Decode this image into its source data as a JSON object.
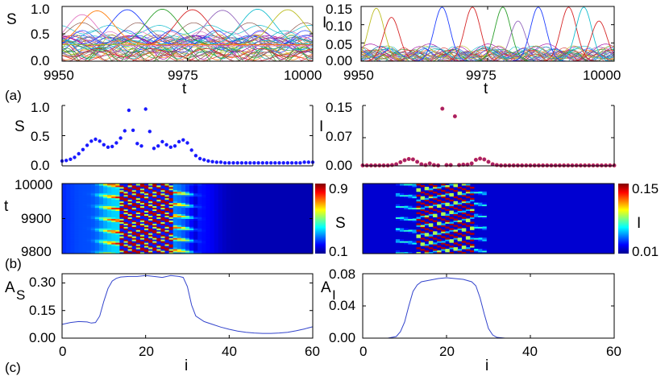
{
  "figure": {
    "panel_labels": [
      "(a)",
      "(b)",
      "(c)"
    ]
  },
  "chart_data": [
    {
      "id": "a-left",
      "type": "line",
      "title": "",
      "xlabel": "t",
      "ylabel": "S",
      "xlim": [
        9950,
        10000
      ],
      "ylim": [
        0,
        1.0
      ],
      "xticks": [
        9950,
        9975,
        10000
      ],
      "xtick_labels": [
        "9950",
        "9975",
        "10000"
      ],
      "yticks": [
        0,
        0.5,
        1.0
      ],
      "ytick_labels": [
        "0.0",
        "0.5",
        "1.0"
      ],
      "grid": false,
      "series_note": "61 oscillator traces S_i(t)",
      "peak_series": [
        {
          "name": "peak-1",
          "color": "#1f3fff",
          "peak_t": 9963,
          "peak": 0.94,
          "width": 5.5,
          "base": 0.3
        },
        {
          "name": "peak-2",
          "color": "#2ca02c",
          "peak_t": 9970,
          "peak": 0.95,
          "width": 5.5,
          "base": 0.3
        },
        {
          "name": "peak-3",
          "color": "#d62728",
          "peak_t": 9976,
          "peak": 0.94,
          "width": 5.5,
          "base": 0.3
        },
        {
          "name": "peak-4",
          "color": "#9467bd",
          "peak_t": 9982,
          "peak": 0.93,
          "width": 5.5,
          "base": 0.3
        },
        {
          "name": "peak-5",
          "color": "#17becf",
          "peak_t": 9989,
          "peak": 0.95,
          "width": 5.5,
          "base": 0.3
        },
        {
          "name": "peak-6",
          "color": "#bcbd22",
          "peak_t": 9995,
          "peak": 0.94,
          "width": 5.5,
          "base": 0.3
        },
        {
          "name": "peak-7",
          "color": "#ff7f0e",
          "peak_t": 9957,
          "peak": 0.92,
          "width": 5.5,
          "base": 0.3
        },
        {
          "name": "peak-8",
          "color": "#e377c2",
          "peak_t": 9954,
          "peak": 0.85,
          "width": 5.0,
          "base": 0.28
        }
      ]
    },
    {
      "id": "a-right",
      "type": "line",
      "title": "",
      "xlabel": "t",
      "ylabel": "I",
      "xlim": [
        9950,
        10000
      ],
      "ylim": [
        0,
        0.15
      ],
      "xticks": [
        9950,
        9975,
        10000
      ],
      "xtick_labels": [
        "9950",
        "9975",
        "10000"
      ],
      "yticks": [
        0,
        0.05,
        0.1,
        0.15
      ],
      "ytick_labels": [
        "0.00",
        "0.05",
        "0.10",
        "0.15"
      ],
      "grid": false,
      "series_note": "61 oscillator traces I_i(t)",
      "peak_series": [
        {
          "name": "peak-1",
          "color": "#bcbd22",
          "peak_t": 9953,
          "peak": 0.145,
          "width": 2.2
        },
        {
          "name": "peak-2",
          "color": "#d62728",
          "peak_t": 9956,
          "peak": 0.12,
          "width": 2.2
        },
        {
          "name": "peak-3",
          "color": "#1f3fff",
          "peak_t": 9966,
          "peak": 0.148,
          "width": 2.2
        },
        {
          "name": "peak-4",
          "color": "#d62728",
          "peak_t": 9972,
          "peak": 0.148,
          "width": 2.2
        },
        {
          "name": "peak-5",
          "color": "#2ca02c",
          "peak_t": 9978,
          "peak": 0.148,
          "width": 2.2
        },
        {
          "name": "peak-6",
          "color": "#9467bd",
          "peak_t": 9981,
          "peak": 0.11,
          "width": 2.2
        },
        {
          "name": "peak-7",
          "color": "#1f3fff",
          "peak_t": 9985,
          "peak": 0.148,
          "width": 2.2
        },
        {
          "name": "peak-8",
          "color": "#d62728",
          "peak_t": 9991,
          "peak": 0.148,
          "width": 2.2
        },
        {
          "name": "peak-9",
          "color": "#17becf",
          "peak_t": 9994,
          "peak": 0.148,
          "width": 2.2
        },
        {
          "name": "peak-10",
          "color": "#d62728",
          "peak_t": 9997,
          "peak": 0.11,
          "width": 2.2
        }
      ]
    },
    {
      "id": "b-left-scatter",
      "type": "scatter",
      "title": "",
      "xlabel": "",
      "ylabel": "S",
      "xlim": [
        0,
        60
      ],
      "ylim": [
        0,
        1.0
      ],
      "yticks": [
        0,
        0.5,
        1.0
      ],
      "ytick_labels": [
        "0.0",
        "0.5",
        "1.0"
      ],
      "marker_color": "#1a1aff",
      "x": [
        0,
        1,
        2,
        3,
        4,
        5,
        6,
        7,
        8,
        9,
        10,
        11,
        12,
        13,
        14,
        15,
        16,
        17,
        18,
        19,
        20,
        21,
        22,
        23,
        24,
        25,
        26,
        27,
        28,
        29,
        30,
        31,
        32,
        33,
        34,
        35,
        36,
        37,
        38,
        39,
        40,
        41,
        42,
        43,
        44,
        45,
        46,
        47,
        48,
        49,
        50,
        51,
        52,
        53,
        54,
        55,
        56,
        57,
        58,
        59,
        60
      ],
      "y": [
        0.08,
        0.09,
        0.11,
        0.14,
        0.2,
        0.27,
        0.34,
        0.41,
        0.44,
        0.41,
        0.35,
        0.31,
        0.32,
        0.38,
        0.46,
        0.58,
        0.92,
        0.59,
        0.37,
        0.33,
        0.94,
        0.57,
        0.29,
        0.33,
        0.4,
        0.35,
        0.31,
        0.33,
        0.4,
        0.43,
        0.38,
        0.26,
        0.17,
        0.12,
        0.1,
        0.08,
        0.07,
        0.06,
        0.06,
        0.05,
        0.05,
        0.05,
        0.05,
        0.05,
        0.05,
        0.05,
        0.05,
        0.05,
        0.05,
        0.05,
        0.05,
        0.05,
        0.05,
        0.05,
        0.05,
        0.05,
        0.05,
        0.05,
        0.06,
        0.06,
        0.06
      ]
    },
    {
      "id": "b-right-scatter",
      "type": "scatter",
      "title": "",
      "xlabel": "",
      "ylabel": "I",
      "xlim": [
        0,
        60
      ],
      "ylim": [
        0,
        0.15
      ],
      "yticks": [
        0,
        0.07,
        0.15
      ],
      "ytick_labels": [
        "0.00",
        "0.07",
        "0.15"
      ],
      "marker_color": "#a0206a",
      "x": [
        0,
        1,
        2,
        3,
        4,
        5,
        6,
        7,
        8,
        9,
        10,
        11,
        12,
        13,
        14,
        15,
        16,
        17,
        18,
        19,
        20,
        21,
        22,
        23,
        24,
        25,
        26,
        27,
        28,
        29,
        30,
        31,
        32,
        33,
        34,
        35,
        36,
        37,
        38,
        39,
        40,
        41,
        42,
        43,
        44,
        45,
        46,
        47,
        48,
        49,
        50,
        51,
        52,
        53,
        54,
        55,
        56,
        57,
        58,
        59,
        60
      ],
      "y": [
        0.001,
        0.001,
        0.001,
        0.001,
        0.001,
        0.001,
        0.001,
        0.002,
        0.004,
        0.009,
        0.014,
        0.017,
        0.016,
        0.01,
        0.004,
        0.002,
        0.006,
        0.002,
        0.001,
        0.142,
        0.002,
        0.002,
        0.123,
        0.002,
        0.003,
        0.003,
        0.006,
        0.015,
        0.018,
        0.016,
        0.01,
        0.004,
        0.002,
        0.001,
        0.001,
        0.001,
        0.001,
        0.001,
        0.001,
        0.001,
        0.001,
        0.001,
        0.001,
        0.001,
        0.001,
        0.001,
        0.001,
        0.001,
        0.001,
        0.001,
        0.001,
        0.001,
        0.001,
        0.001,
        0.001,
        0.001,
        0.001,
        0.001,
        0.001,
        0.001,
        0.001
      ]
    },
    {
      "id": "b-left-heatmap",
      "type": "heatmap",
      "xlabel": "",
      "ylabel": "t",
      "xlim": [
        0,
        60
      ],
      "ylim": [
        9800,
        10000
      ],
      "yticks": [
        9800,
        9900,
        10000
      ],
      "ytick_labels": [
        "9800",
        "9900",
        "10000"
      ],
      "colorbar": {
        "label": "S",
        "min": 0.1,
        "max": 0.9,
        "tick_labels": [
          "0.9",
          "0.1"
        ]
      },
      "period": 33,
      "active_range_i": [
        8,
        32
      ]
    },
    {
      "id": "b-right-heatmap",
      "type": "heatmap",
      "xlabel": "",
      "ylabel": "",
      "xlim": [
        0,
        60
      ],
      "ylim": [
        9800,
        10000
      ],
      "colorbar": {
        "label": "I",
        "min": 0.01,
        "max": 0.15,
        "tick_labels": [
          "0.15",
          "0.01"
        ]
      },
      "period": 33,
      "active_range_i": [
        8,
        29
      ]
    },
    {
      "id": "c-left",
      "type": "line",
      "title": "",
      "xlabel": "i",
      "ylabel_main": "A",
      "ylabel_sub": "S",
      "xlim": [
        0,
        60
      ],
      "ylim": [
        0,
        0.35
      ],
      "xticks": [
        0,
        20,
        40,
        60
      ],
      "xtick_labels": [
        "0",
        "20",
        "40",
        "60"
      ],
      "yticks": [
        0,
        0.15,
        0.3
      ],
      "ytick_labels": [
        "0.00",
        "0.15",
        "0.30"
      ],
      "line_color": "#3344cc",
      "x": [
        0,
        2,
        4,
        6,
        7,
        8,
        9,
        10,
        11,
        12,
        13,
        14,
        16,
        18,
        20,
        22,
        24,
        26,
        28,
        29,
        30,
        31,
        32,
        34,
        36,
        38,
        40,
        42,
        44,
        46,
        48,
        50,
        52,
        54,
        56,
        58,
        60
      ],
      "y": [
        0.075,
        0.085,
        0.09,
        0.088,
        0.082,
        0.085,
        0.12,
        0.2,
        0.27,
        0.31,
        0.325,
        0.332,
        0.335,
        0.335,
        0.34,
        0.335,
        0.33,
        0.34,
        0.335,
        0.33,
        0.28,
        0.18,
        0.12,
        0.09,
        0.075,
        0.06,
        0.048,
        0.038,
        0.032,
        0.028,
        0.026,
        0.026,
        0.028,
        0.032,
        0.04,
        0.05,
        0.062
      ]
    },
    {
      "id": "c-right",
      "type": "line",
      "title": "",
      "xlabel": "i",
      "ylabel_main": "A",
      "ylabel_sub": "I",
      "xlim": [
        0,
        60
      ],
      "ylim": [
        0,
        0.08
      ],
      "xticks": [
        0,
        20,
        40,
        60
      ],
      "xtick_labels": [
        "0",
        "20",
        "40",
        "60"
      ],
      "yticks": [
        0,
        0.04,
        0.08
      ],
      "ytick_labels": [
        "0.00",
        "0.04",
        "0.08"
      ],
      "line_color": "#3344cc",
      "x": [
        0,
        2,
        4,
        6,
        8,
        9,
        10,
        11,
        12,
        13,
        14,
        16,
        18,
        20,
        22,
        24,
        26,
        27,
        28,
        29,
        30,
        31,
        32,
        34,
        40,
        50,
        60
      ],
      "y": [
        0,
        0,
        0,
        0,
        0.002,
        0.008,
        0.02,
        0.04,
        0.058,
        0.066,
        0.07,
        0.072,
        0.074,
        0.075,
        0.074,
        0.073,
        0.07,
        0.065,
        0.05,
        0.03,
        0.012,
        0.004,
        0.001,
        0,
        0,
        0,
        0
      ]
    }
  ]
}
